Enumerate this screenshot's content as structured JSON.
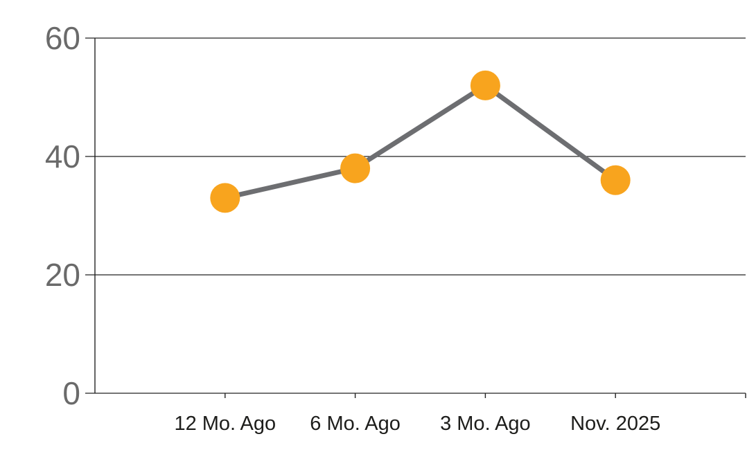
{
  "chart_data": {
    "type": "line",
    "categories": [
      "12 Mo. Ago",
      "6 Mo. Ago",
      "3 Mo. Ago",
      "Nov. 2025"
    ],
    "values": [
      33,
      38,
      52,
      36
    ],
    "title": "",
    "xlabel": "",
    "ylabel": "",
    "ylim": [
      0,
      60
    ],
    "yticks": [
      0,
      20,
      40,
      60
    ],
    "grid": "horizontal",
    "legend": "none",
    "colors": {
      "marker": "#F8A41E",
      "line": "#6D6E71",
      "grid": "#222222",
      "ytick_label": "#6A6A6A",
      "xtick_label": "#1D1D1B"
    }
  }
}
